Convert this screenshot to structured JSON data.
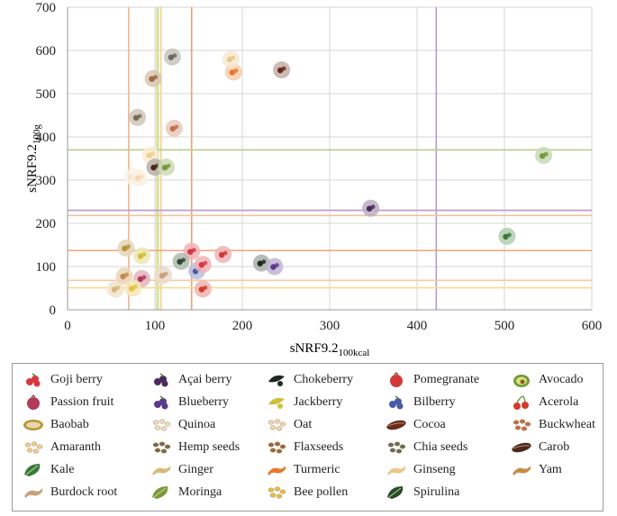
{
  "chart_data": {
    "type": "scatter",
    "title": "",
    "xlabel": "sNRF9.2",
    "xlabel_sub": "100kcal",
    "ylabel": "sNRF9.2",
    "ylabel_sub": "100g",
    "xlim": [
      0,
      600
    ],
    "ylim": [
      0,
      700
    ],
    "x_ticks": [
      "0",
      "100",
      "200",
      "300",
      "400",
      "500",
      "600"
    ],
    "y_ticks": [
      "0",
      "100",
      "200",
      "300",
      "400",
      "500",
      "600",
      "700"
    ],
    "grid": true,
    "vertical_lines": [
      {
        "x": 70,
        "color": "#f2b38a"
      },
      {
        "x": 102,
        "color": "#e6dc8c"
      },
      {
        "x": 104,
        "color": "#c9df9e"
      },
      {
        "x": 107,
        "color": "#f4d08a"
      },
      {
        "x": 142,
        "color": "#ef9f72"
      },
      {
        "x": 422,
        "color": "#b79ac8"
      }
    ],
    "horizontal_lines": [
      {
        "y": 370,
        "color": "#b7cf8a"
      },
      {
        "y": 230,
        "color": "#b79ac8"
      },
      {
        "y": 218,
        "color": "#f2c2a2"
      },
      {
        "y": 137,
        "color": "#f0a47a"
      },
      {
        "y": 68,
        "color": "#f6c9a8"
      },
      {
        "y": 51,
        "color": "#f2dc8e"
      }
    ],
    "series": [
      {
        "name": "Goji berry",
        "x": 142,
        "y": 135,
        "color": "#d9363e"
      },
      {
        "name": "Açai berry",
        "x": 347,
        "y": 235,
        "color": "#4a2a5a"
      },
      {
        "name": "Chokeberry",
        "x": 222,
        "y": 108,
        "color": "#1e2a1e"
      },
      {
        "name": "Pomegranate",
        "x": 178,
        "y": 128,
        "color": "#d23a3a"
      },
      {
        "name": "Avocado",
        "x": 545,
        "y": 357,
        "color": "#6f9a3a"
      },
      {
        "name": "Passion fruit",
        "x": 85,
        "y": 72,
        "color": "#b23a5a"
      },
      {
        "name": "Blueberry",
        "x": 237,
        "y": 100,
        "color": "#5a3a8a"
      },
      {
        "name": "Jackberry",
        "x": 85,
        "y": 125,
        "color": "#cfbf3a"
      },
      {
        "name": "Bilberry",
        "x": 148,
        "y": 90,
        "color": "#4a5aa8"
      },
      {
        "name": "Acerola",
        "x": 155,
        "y": 48,
        "color": "#d23a2a"
      },
      {
        "name": "Baobab",
        "x": 67,
        "y": 143,
        "color": "#b8943a"
      },
      {
        "name": "Quinoa",
        "x": 75,
        "y": 308,
        "color": "#f0e0c0"
      },
      {
        "name": "Oat",
        "x": 82,
        "y": 305,
        "color": "#f3d9b0"
      },
      {
        "name": "Cocoa",
        "x": 245,
        "y": 555,
        "color": "#6a2a1a"
      },
      {
        "name": "Buckwheat",
        "x": 122,
        "y": 420,
        "color": "#c0704a"
      },
      {
        "name": "Amaranth",
        "x": 95,
        "y": 358,
        "color": "#f0d090"
      },
      {
        "name": "Hemp seeds",
        "x": 80,
        "y": 445,
        "color": "#7a6a4a"
      },
      {
        "name": "Flaxseeds",
        "x": 98,
        "y": 535,
        "color": "#9a6a3a"
      },
      {
        "name": "Chia seeds",
        "x": 120,
        "y": 585,
        "color": "#6a6a5a"
      },
      {
        "name": "Carob",
        "x": 100,
        "y": 330,
        "color": "#4a2a1a"
      },
      {
        "name": "Kale",
        "x": 503,
        "y": 170,
        "color": "#3a7a3a"
      },
      {
        "name": "Ginger",
        "x": 55,
        "y": 48,
        "color": "#d8b87a"
      },
      {
        "name": "Turmeric",
        "x": 190,
        "y": 550,
        "color": "#e8782a"
      },
      {
        "name": "Ginseng",
        "x": 187,
        "y": 580,
        "color": "#e8c88a"
      },
      {
        "name": "Yam",
        "x": 65,
        "y": 78,
        "color": "#c88a4a"
      },
      {
        "name": "Burdock root",
        "x": 110,
        "y": 80,
        "color": "#c8a07a"
      },
      {
        "name": "Moringa",
        "x": 113,
        "y": 330,
        "color": "#7a9a3a"
      },
      {
        "name": "Bee pollen",
        "x": 75,
        "y": 50,
        "color": "#e8c040"
      },
      {
        "name": "Spirulina",
        "x": 130,
        "y": 112,
        "color": "#2a4a2a"
      }
    ],
    "extra_points": [
      {
        "name": "Goji berry",
        "x": 155,
        "y": 105,
        "color": "#d9363e"
      }
    ],
    "legend": {
      "placement": "bottom",
      "entries": [
        {
          "label": "Goji berry",
          "color": "#d9363e",
          "icon": "berry-cluster-icon"
        },
        {
          "label": "Açai berry",
          "color": "#4a2a5a",
          "icon": "berry-cluster-icon"
        },
        {
          "label": "Chokeberry",
          "color": "#1e2a1e",
          "icon": "leaf-berry-icon"
        },
        {
          "label": "Pomegranate",
          "color": "#d23a3a",
          "icon": "round-fruit-icon"
        },
        {
          "label": "Avocado",
          "color": "#6f9a3a",
          "icon": "avocado-icon"
        },
        {
          "label": "Passion fruit",
          "color": "#b23a5a",
          "icon": "round-fruit-icon"
        },
        {
          "label": "Blueberry",
          "color": "#5a3a8a",
          "icon": "berry-cluster-icon"
        },
        {
          "label": "Jackberry",
          "color": "#cfbf3a",
          "icon": "leaf-berry-icon"
        },
        {
          "label": "Bilberry",
          "color": "#4a5aa8",
          "icon": "berry-cluster-icon"
        },
        {
          "label": "Acerola",
          "color": "#d23a2a",
          "icon": "cherry-icon"
        },
        {
          "label": "Baobab",
          "color": "#b8943a",
          "icon": "pod-icon"
        },
        {
          "label": "Quinoa",
          "color": "#f0e0c0",
          "icon": "seeds-icon"
        },
        {
          "label": "Oat",
          "color": "#f3d9b0",
          "icon": "seeds-icon"
        },
        {
          "label": "Cocoa",
          "color": "#6a2a1a",
          "icon": "bean-icon"
        },
        {
          "label": "Buckwheat",
          "color": "#c0704a",
          "icon": "seeds-icon"
        },
        {
          "label": "Amaranth",
          "color": "#f0d090",
          "icon": "seeds-icon"
        },
        {
          "label": "Hemp seeds",
          "color": "#7a6a4a",
          "icon": "seeds-icon"
        },
        {
          "label": "Flaxseeds",
          "color": "#9a6a3a",
          "icon": "seeds-icon"
        },
        {
          "label": "Chia seeds",
          "color": "#6a6a5a",
          "icon": "seeds-icon"
        },
        {
          "label": "Carob",
          "color": "#4a2a1a",
          "icon": "bean-icon"
        },
        {
          "label": "Kale",
          "color": "#3a7a3a",
          "icon": "leaf-icon"
        },
        {
          "label": "Ginger",
          "color": "#d8b87a",
          "icon": "root-icon"
        },
        {
          "label": "Turmeric",
          "color": "#e8782a",
          "icon": "root-icon"
        },
        {
          "label": "Ginseng",
          "color": "#e8c88a",
          "icon": "root-icon"
        },
        {
          "label": "Yam",
          "color": "#c88a4a",
          "icon": "root-icon"
        },
        {
          "label": "Burdock root",
          "color": "#c8a07a",
          "icon": "root-icon"
        },
        {
          "label": "Moringa",
          "color": "#7a9a3a",
          "icon": "leaf-icon"
        },
        {
          "label": "Bee pollen",
          "color": "#e8c040",
          "icon": "seeds-icon"
        },
        {
          "label": "Spirulina",
          "color": "#2a4a2a",
          "icon": "leaf-icon"
        }
      ]
    }
  }
}
